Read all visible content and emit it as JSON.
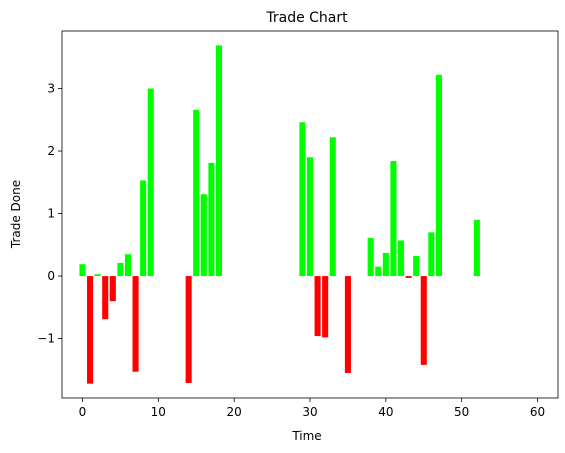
{
  "chart_data": {
    "type": "bar",
    "title": "Trade Chart",
    "xlabel": "Time",
    "ylabel": "Trade Done",
    "xlim": [
      -2.7,
      62.7
    ],
    "ylim": [
      -1.95,
      3.92
    ],
    "xticks": [
      0,
      10,
      20,
      30,
      40,
      50,
      60
    ],
    "xtick_labels": [
      "0",
      "10",
      "20",
      "30",
      "40",
      "50",
      "60"
    ],
    "yticks": [
      -1,
      0,
      1,
      2,
      3
    ],
    "ytick_labels": [
      "−1",
      "0",
      "1",
      "2",
      "3"
    ],
    "grid": false,
    "legend": false,
    "colors": {
      "positive": "#00ff00",
      "negative": "#ff0000"
    },
    "x": [
      0,
      1,
      2,
      3,
      4,
      5,
      6,
      7,
      8,
      9,
      14,
      15,
      16,
      17,
      18,
      29,
      30,
      31,
      32,
      33,
      35,
      38,
      39,
      40,
      41,
      42,
      43,
      44,
      45,
      46,
      47,
      52
    ],
    "values": [
      0.19,
      -1.72,
      0.03,
      -0.69,
      -0.4,
      0.21,
      0.35,
      -1.53,
      1.53,
      3.0,
      -1.71,
      2.66,
      1.31,
      1.81,
      3.69,
      2.46,
      1.9,
      -0.96,
      -0.98,
      2.22,
      -1.55,
      0.61,
      0.15,
      0.37,
      1.84,
      0.57,
      -0.03,
      0.32,
      -1.42,
      0.7,
      3.22,
      0.9
    ]
  }
}
